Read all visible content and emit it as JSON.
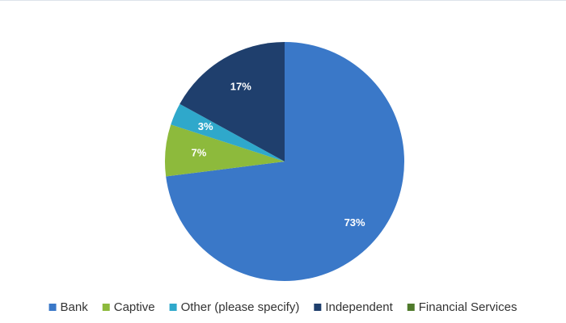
{
  "chart_data": {
    "type": "pie",
    "categories": [
      "Bank",
      "Captive",
      "Other (please specify)",
      "Independent",
      "Financial Services"
    ],
    "values": [
      73,
      7,
      3,
      17,
      0
    ],
    "value_labels": [
      "73%",
      "7%",
      "3%",
      "17%",
      null
    ],
    "colors": [
      "#3a78c8",
      "#8dba3c",
      "#2fa8cb",
      "#1f3f6d",
      "#4f7a2b"
    ],
    "legend": "bottom"
  }
}
